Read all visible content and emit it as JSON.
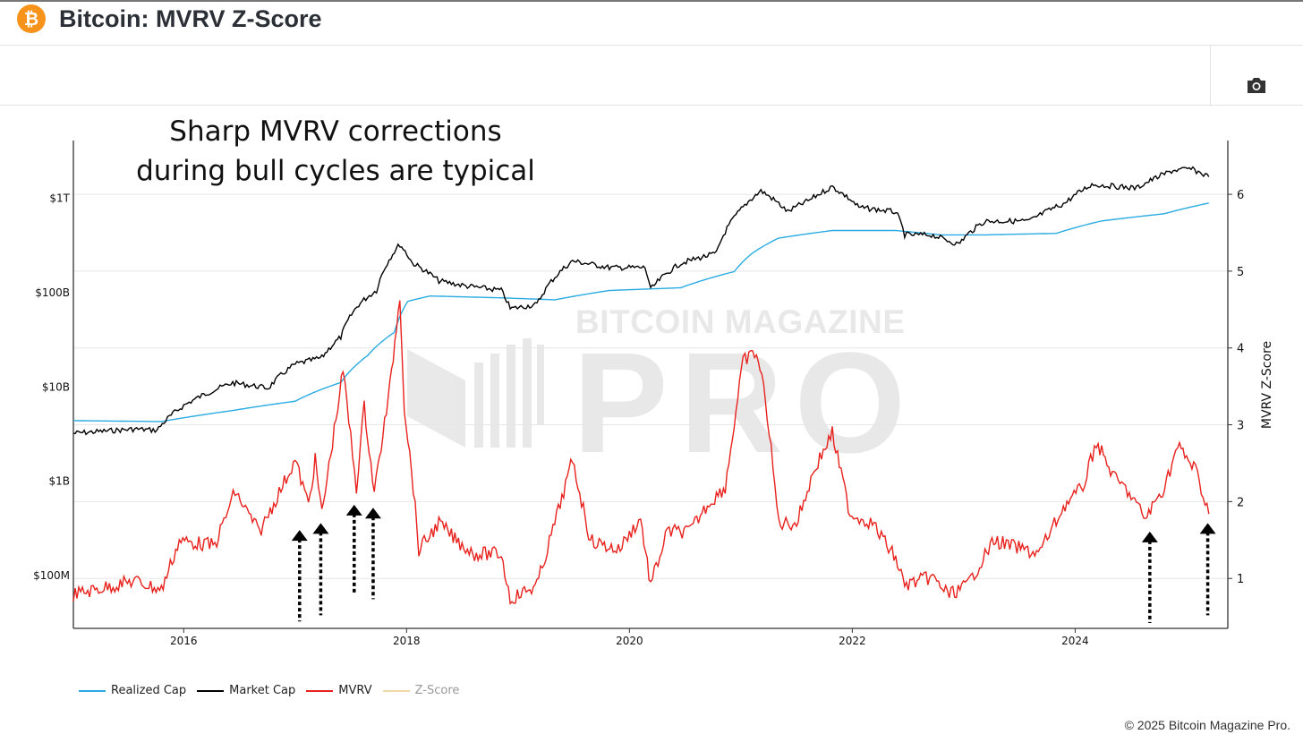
{
  "header": {
    "title": "Bitcoin: MVRV Z-Score",
    "logo_icon": "bitcoin-icon"
  },
  "toolbar": {
    "camera_icon": "camera-icon"
  },
  "watermark": {
    "line1": "BITCOIN MAGAZINE",
    "line2": "PRO"
  },
  "footer": {
    "copyright": "© 2025 Bitcoin Magazine Pro."
  },
  "chart_data": {
    "type": "line",
    "annotation": {
      "line1": "Sharp MVRV corrections",
      "line2": "during bull cycles are typical"
    },
    "xlim": [
      2015.01,
      2025.37
    ],
    "x_ticks": [
      "2016",
      "2018",
      "2020",
      "2022",
      "2024"
    ],
    "y_left": {
      "scale": "log",
      "unit": "USD billions",
      "range": [
        0.027,
        4000
      ],
      "ticks": [
        {
          "value": 0.1,
          "label": "$100M"
        },
        {
          "value": 1,
          "label": "$1B"
        },
        {
          "value": 10,
          "label": "$10B"
        },
        {
          "value": 100,
          "label": "$100B"
        },
        {
          "value": 1000,
          "label": "$1T"
        }
      ]
    },
    "y_right": {
      "label": "MVRV Z-Score",
      "range": [
        0.35,
        6.7
      ],
      "ticks": [
        "1",
        "2",
        "3",
        "4",
        "5",
        "6"
      ]
    },
    "grid": true,
    "legend_position": "bottom-left",
    "series": [
      {
        "name": "Realized Cap",
        "axis": "left",
        "color": "#29abe2",
        "points": [
          [
            2015.01,
            4.3
          ],
          [
            2015.8,
            4.2
          ],
          [
            2016.44,
            5.5
          ],
          [
            2017.0,
            6.9
          ],
          [
            2017.41,
            10.9
          ],
          [
            2017.65,
            21
          ],
          [
            2017.89,
            37
          ],
          [
            2018.01,
            79
          ],
          [
            2018.21,
            90
          ],
          [
            2018.85,
            86
          ],
          [
            2019.33,
            82
          ],
          [
            2019.82,
            103
          ],
          [
            2020.46,
            110
          ],
          [
            2020.94,
            163
          ],
          [
            2021.1,
            254
          ],
          [
            2021.34,
            370
          ],
          [
            2021.82,
            445
          ],
          [
            2022.39,
            445
          ],
          [
            2022.79,
            400
          ],
          [
            2023.19,
            400
          ],
          [
            2023.83,
            415
          ],
          [
            2024.23,
            560
          ],
          [
            2024.8,
            670
          ],
          [
            2025.2,
            870
          ]
        ]
      },
      {
        "name": "Market Cap",
        "axis": "left",
        "color": "#000000",
        "points": [
          [
            2015.01,
            3.15
          ],
          [
            2015.56,
            3.5
          ],
          [
            2015.76,
            3.4
          ],
          [
            2016.0,
            6.2
          ],
          [
            2016.44,
            10.8
          ],
          [
            2016.76,
            9.5
          ],
          [
            2017.0,
            17
          ],
          [
            2017.24,
            20
          ],
          [
            2017.41,
            33
          ],
          [
            2017.57,
            73
          ],
          [
            2017.73,
            103
          ],
          [
            2017.94,
            317
          ],
          [
            2018.05,
            202
          ],
          [
            2018.29,
            130
          ],
          [
            2018.53,
            115
          ],
          [
            2018.85,
            103
          ],
          [
            2018.93,
            66
          ],
          [
            2019.17,
            73
          ],
          [
            2019.49,
            211
          ],
          [
            2019.82,
            180
          ],
          [
            2020.14,
            180
          ],
          [
            2020.19,
            105
          ],
          [
            2020.46,
            200
          ],
          [
            2020.78,
            254
          ],
          [
            2021.02,
            786
          ],
          [
            2021.18,
            1170
          ],
          [
            2021.42,
            700
          ],
          [
            2021.62,
            940
          ],
          [
            2021.82,
            1290
          ],
          [
            2022.06,
            780
          ],
          [
            2022.39,
            700
          ],
          [
            2022.47,
            400
          ],
          [
            2022.71,
            400
          ],
          [
            2022.95,
            317
          ],
          [
            2023.19,
            560
          ],
          [
            2023.59,
            560
          ],
          [
            2023.91,
            870
          ],
          [
            2024.15,
            1370
          ],
          [
            2024.55,
            1250
          ],
          [
            2024.88,
            1930
          ],
          [
            2025.04,
            2000
          ],
          [
            2025.2,
            1650
          ]
        ]
      },
      {
        "name": "MVRV",
        "axis": "right",
        "color": "#e8211c",
        "points": [
          [
            2015.01,
            0.79
          ],
          [
            2015.56,
            0.97
          ],
          [
            2015.8,
            0.85
          ],
          [
            2015.96,
            1.49
          ],
          [
            2016.28,
            1.43
          ],
          [
            2016.46,
            2.13
          ],
          [
            2016.68,
            1.6
          ],
          [
            2017.0,
            2.54
          ],
          [
            2017.12,
            1.96
          ],
          [
            2017.18,
            2.54
          ],
          [
            2017.24,
            1.84
          ],
          [
            2017.43,
            3.71
          ],
          [
            2017.55,
            2.19
          ],
          [
            2017.62,
            3.24
          ],
          [
            2017.71,
            2.12
          ],
          [
            2017.85,
            3.48
          ],
          [
            2017.94,
            4.7
          ],
          [
            2017.98,
            3.24
          ],
          [
            2018.06,
            2.19
          ],
          [
            2018.11,
            1.37
          ],
          [
            2018.29,
            1.72
          ],
          [
            2018.45,
            1.49
          ],
          [
            2018.61,
            1.32
          ],
          [
            2018.85,
            1.32
          ],
          [
            2018.93,
            0.73
          ],
          [
            2019.17,
            0.91
          ],
          [
            2019.33,
            1.72
          ],
          [
            2019.49,
            2.54
          ],
          [
            2019.65,
            1.49
          ],
          [
            2019.9,
            1.37
          ],
          [
            2020.1,
            1.78
          ],
          [
            2020.19,
            0.91
          ],
          [
            2020.34,
            1.61
          ],
          [
            2020.54,
            1.61
          ],
          [
            2020.7,
            1.96
          ],
          [
            2020.86,
            2.19
          ],
          [
            2021.02,
            3.83
          ],
          [
            2021.14,
            3.94
          ],
          [
            2021.22,
            3.36
          ],
          [
            2021.34,
            1.72
          ],
          [
            2021.5,
            1.72
          ],
          [
            2021.66,
            2.42
          ],
          [
            2021.82,
            2.89
          ],
          [
            2021.98,
            1.84
          ],
          [
            2022.18,
            1.72
          ],
          [
            2022.39,
            1.26
          ],
          [
            2022.47,
            0.91
          ],
          [
            2022.71,
            1.02
          ],
          [
            2022.87,
            0.79
          ],
          [
            2023.03,
            0.91
          ],
          [
            2023.27,
            1.49
          ],
          [
            2023.67,
            1.32
          ],
          [
            2023.91,
            1.96
          ],
          [
            2024.07,
            2.19
          ],
          [
            2024.19,
            2.78
          ],
          [
            2024.35,
            2.31
          ],
          [
            2024.47,
            2.14
          ],
          [
            2024.63,
            1.78
          ],
          [
            2024.8,
            2.19
          ],
          [
            2024.92,
            2.72
          ],
          [
            2025.08,
            2.42
          ],
          [
            2025.2,
            1.84
          ]
        ]
      },
      {
        "name": "Z-Score",
        "axis": "right",
        "color": "#f0d9a8",
        "hidden": true,
        "points": []
      }
    ],
    "arrows": [
      {
        "x": 2017.04,
        "tip": 1.63,
        "tail": 0.44
      },
      {
        "x": 2017.23,
        "tip": 1.72,
        "tail": 0.52
      },
      {
        "x": 2017.53,
        "tip": 1.96,
        "tail": 0.79
      },
      {
        "x": 2017.7,
        "tip": 1.92,
        "tail": 0.73
      },
      {
        "x": 2024.67,
        "tip": 1.61,
        "tail": 0.42
      },
      {
        "x": 2025.19,
        "tip": 1.72,
        "tail": 0.52
      }
    ]
  }
}
